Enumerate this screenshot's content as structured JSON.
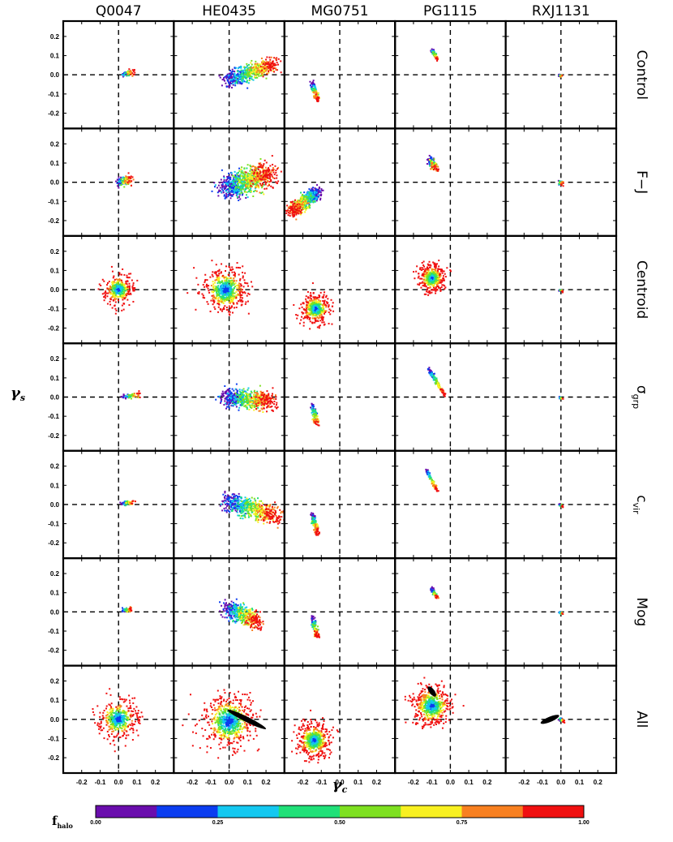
{
  "chart_data": {
    "type": "scatter",
    "columns": [
      "Q0047",
      "HE0435",
      "MG0751",
      "PG1115",
      "RXJ1131"
    ],
    "rows": [
      "Control",
      "F−J",
      "Centroid",
      "σgrp",
      "cvir",
      "Mog",
      "All"
    ],
    "row_label_parts": [
      {
        "main": "Control",
        "sub": ""
      },
      {
        "main": "F−J",
        "sub": ""
      },
      {
        "main": "Centroid",
        "sub": ""
      },
      {
        "main": "σ",
        "sub": "grp"
      },
      {
        "main": "c",
        "sub": "vir"
      },
      {
        "main": "Mog",
        "sub": ""
      },
      {
        "main": "All",
        "sub": ""
      }
    ],
    "xlabel": "γc",
    "xlabel_parts": {
      "main": "γ",
      "sub": "c"
    },
    "ylabel": "γs",
    "ylabel_parts": {
      "main": "γ",
      "sub": "s"
    },
    "xlim": [
      -0.3,
      0.3
    ],
    "ylim": [
      -0.28,
      0.28
    ],
    "xticks": [
      -0.2,
      -0.1,
      0.0,
      0.1,
      0.2
    ],
    "xtick_labels": [
      "-0.2",
      "-0.1",
      "0.0",
      "0.1",
      "0.2"
    ],
    "yticks": [
      0.2,
      0.1,
      0.0,
      -0.1,
      -0.2
    ],
    "ytick_labels": [
      "0.2",
      "0.1",
      "0.0",
      "-0.1",
      "-0.2"
    ],
    "reference_lines": {
      "x": 0.0,
      "y": 0.0,
      "style": "dashed"
    },
    "colorbar": {
      "label": "fhalo",
      "label_parts": {
        "main": "f",
        "sub": "halo"
      },
      "range": [
        0.0,
        1.0
      ],
      "ticks": [
        0.0,
        0.25,
        0.5,
        0.75,
        1.0
      ],
      "tick_labels": [
        "0.00",
        "0.25",
        "0.50",
        "0.75",
        "1.00"
      ],
      "colors": [
        "#6a0dad",
        "#0b3df0",
        "#14c8f0",
        "#20e078",
        "#7ee020",
        "#f8f020",
        "#f88020",
        "#f01010"
      ]
    },
    "panels": [
      {
        "row": 0,
        "col": 0,
        "cloud": {
          "x0": 0.02,
          "x1": 0.08,
          "y0": 0.0,
          "y1": 0.015,
          "w": 0.012,
          "n": 60
        }
      },
      {
        "row": 0,
        "col": 1,
        "cloud": {
          "x0": -0.01,
          "x1": 0.25,
          "y0": -0.03,
          "y1": 0.06,
          "w": 0.035,
          "n": 520
        }
      },
      {
        "row": 0,
        "col": 2,
        "cloud": {
          "x0": -0.15,
          "x1": -0.12,
          "y0": -0.04,
          "y1": -0.13,
          "w": 0.012,
          "n": 110
        }
      },
      {
        "row": 0,
        "col": 3,
        "cloud": {
          "x0": -0.1,
          "x1": -0.07,
          "y0": 0.13,
          "y1": 0.08,
          "w": 0.008,
          "n": 70
        }
      },
      {
        "row": 0,
        "col": 4,
        "cloud": {
          "x0": -0.01,
          "x1": 0.01,
          "y0": 0.0,
          "y1": -0.01,
          "w": 0.006,
          "n": 20
        }
      },
      {
        "row": 1,
        "col": 0,
        "cloud": {
          "x0": 0.0,
          "x1": 0.07,
          "y0": 0.0,
          "y1": 0.015,
          "w": 0.02,
          "n": 110
        }
      },
      {
        "row": 1,
        "col": 1,
        "cloud": {
          "x0": -0.02,
          "x1": 0.22,
          "y0": -0.03,
          "y1": 0.05,
          "w": 0.055,
          "n": 820
        }
      },
      {
        "row": 1,
        "col": 2,
        "cloud": {
          "x0": -0.12,
          "x1": -0.26,
          "y0": -0.05,
          "y1": -0.15,
          "w": 0.03,
          "n": 520
        }
      },
      {
        "row": 1,
        "col": 3,
        "cloud": {
          "x0": -0.11,
          "x1": -0.08,
          "y0": 0.12,
          "y1": 0.07,
          "w": 0.018,
          "n": 110
        }
      },
      {
        "row": 1,
        "col": 4,
        "cloud": {
          "x0": -0.01,
          "x1": 0.01,
          "y0": 0.0,
          "y1": -0.01,
          "w": 0.01,
          "n": 40
        }
      },
      {
        "row": 2,
        "col": 0,
        "ring": {
          "cx": 0.0,
          "cy": 0.0,
          "r": 0.06,
          "n": 420
        }
      },
      {
        "row": 2,
        "col": 1,
        "ring": {
          "cx": -0.02,
          "cy": 0.0,
          "r": 0.09,
          "n": 700
        }
      },
      {
        "row": 2,
        "col": 2,
        "ring": {
          "cx": -0.13,
          "cy": -0.1,
          "r": 0.06,
          "n": 560
        }
      },
      {
        "row": 2,
        "col": 3,
        "ring": {
          "cx": -0.1,
          "cy": 0.06,
          "r": 0.055,
          "n": 620
        }
      },
      {
        "row": 2,
        "col": 4,
        "cloud": {
          "x0": -0.01,
          "x1": 0.01,
          "y0": 0.0,
          "y1": -0.01,
          "w": 0.005,
          "n": 15
        }
      },
      {
        "row": 3,
        "col": 0,
        "cloud": {
          "x0": 0.02,
          "x1": 0.12,
          "y0": 0.0,
          "y1": 0.015,
          "w": 0.01,
          "n": 60
        }
      },
      {
        "row": 3,
        "col": 1,
        "cloud": {
          "x0": -0.02,
          "x1": 0.23,
          "y0": 0.0,
          "y1": -0.02,
          "w": 0.04,
          "n": 600
        }
      },
      {
        "row": 3,
        "col": 2,
        "cloud": {
          "x0": -0.15,
          "x1": -0.12,
          "y0": -0.04,
          "y1": -0.15,
          "w": 0.012,
          "n": 110
        }
      },
      {
        "row": 3,
        "col": 3,
        "cloud": {
          "x0": -0.12,
          "x1": -0.03,
          "y0": 0.15,
          "y1": 0.01,
          "w": 0.008,
          "n": 110
        }
      },
      {
        "row": 3,
        "col": 4,
        "cloud": {
          "x0": -0.01,
          "x1": 0.01,
          "y0": 0.0,
          "y1": -0.01,
          "w": 0.005,
          "n": 15
        }
      },
      {
        "row": 4,
        "col": 0,
        "cloud": {
          "x0": 0.02,
          "x1": 0.08,
          "y0": 0.005,
          "y1": 0.015,
          "w": 0.01,
          "n": 50
        }
      },
      {
        "row": 4,
        "col": 1,
        "cloud": {
          "x0": -0.02,
          "x1": 0.26,
          "y0": 0.02,
          "y1": -0.06,
          "w": 0.04,
          "n": 600
        }
      },
      {
        "row": 4,
        "col": 2,
        "cloud": {
          "x0": -0.15,
          "x1": -0.12,
          "y0": -0.05,
          "y1": -0.15,
          "w": 0.012,
          "n": 120
        }
      },
      {
        "row": 4,
        "col": 3,
        "cloud": {
          "x0": -0.13,
          "x1": -0.07,
          "y0": 0.18,
          "y1": 0.07,
          "w": 0.006,
          "n": 110
        }
      },
      {
        "row": 4,
        "col": 4,
        "cloud": {
          "x0": -0.01,
          "x1": 0.01,
          "y0": 0.0,
          "y1": -0.01,
          "w": 0.005,
          "n": 15
        }
      },
      {
        "row": 5,
        "col": 0,
        "cloud": {
          "x0": 0.02,
          "x1": 0.07,
          "y0": 0.005,
          "y1": 0.015,
          "w": 0.01,
          "n": 50
        }
      },
      {
        "row": 5,
        "col": 1,
        "cloud": {
          "x0": -0.01,
          "x1": 0.16,
          "y0": 0.02,
          "y1": -0.05,
          "w": 0.035,
          "n": 480
        }
      },
      {
        "row": 5,
        "col": 2,
        "cloud": {
          "x0": -0.15,
          "x1": -0.12,
          "y0": -0.03,
          "y1": -0.13,
          "w": 0.012,
          "n": 110
        }
      },
      {
        "row": 5,
        "col": 3,
        "cloud": {
          "x0": -0.1,
          "x1": -0.07,
          "y0": 0.12,
          "y1": 0.07,
          "w": 0.008,
          "n": 70
        }
      },
      {
        "row": 5,
        "col": 4,
        "cloud": {
          "x0": -0.01,
          "x1": 0.01,
          "y0": 0.0,
          "y1": -0.01,
          "w": 0.005,
          "n": 15
        }
      },
      {
        "row": 6,
        "col": 0,
        "ring": {
          "cx": 0.0,
          "cy": 0.0,
          "r": 0.08,
          "n": 520
        }
      },
      {
        "row": 6,
        "col": 1,
        "ring": {
          "cx": 0.0,
          "cy": -0.01,
          "r": 0.11,
          "n": 800
        },
        "black": {
          "x0": -0.01,
          "y0": 0.05,
          "x1": 0.2,
          "y1": -0.05
        }
      },
      {
        "row": 6,
        "col": 2,
        "ring": {
          "cx": -0.14,
          "cy": -0.11,
          "r": 0.07,
          "n": 700
        }
      },
      {
        "row": 6,
        "col": 3,
        "ring": {
          "cx": -0.1,
          "cy": 0.07,
          "r": 0.08,
          "n": 700
        },
        "black": {
          "x0": -0.12,
          "y0": 0.17,
          "x1": -0.08,
          "y1": 0.12
        }
      },
      {
        "row": 6,
        "col": 4,
        "cloud": {
          "x0": -0.01,
          "x1": 0.02,
          "y0": 0.0,
          "y1": -0.01,
          "w": 0.008,
          "n": 30
        },
        "black": {
          "x0": -0.11,
          "y0": -0.02,
          "x1": -0.01,
          "y1": 0.02
        }
      }
    ]
  }
}
